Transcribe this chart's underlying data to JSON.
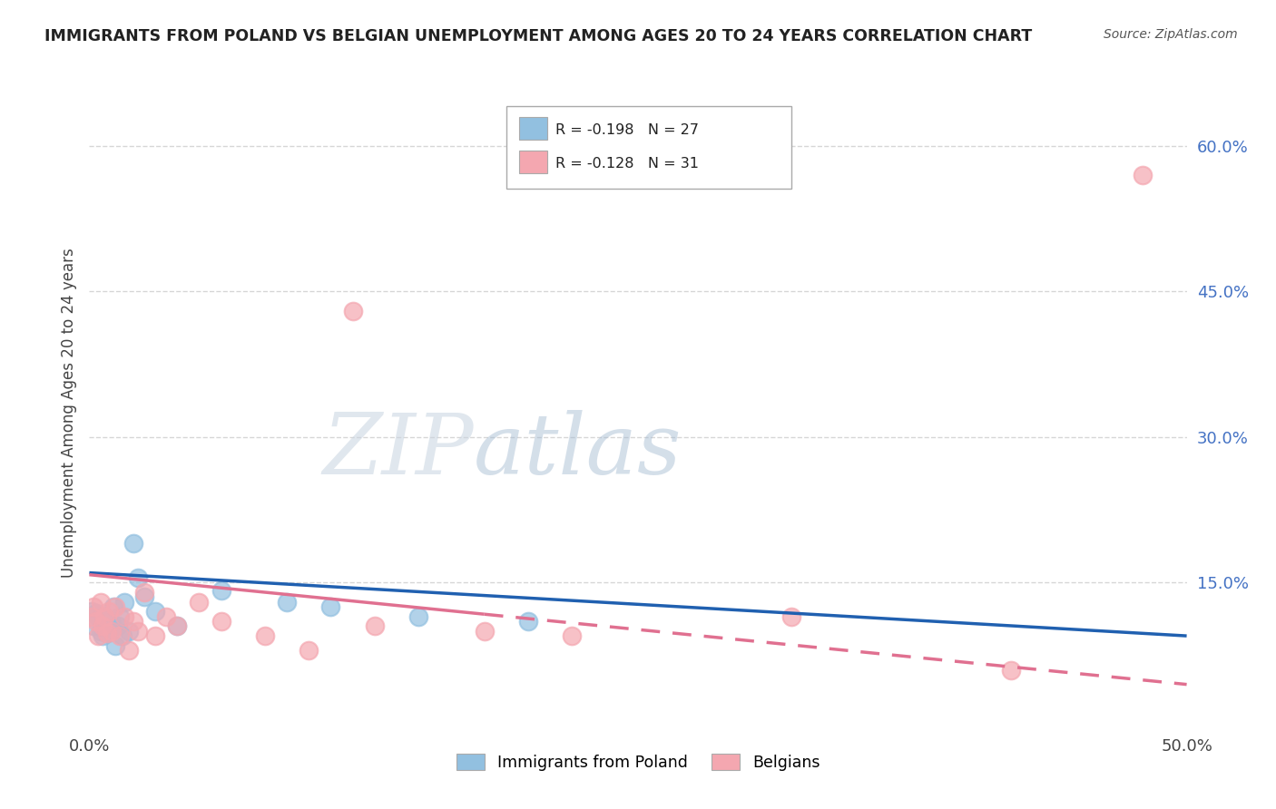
{
  "title": "IMMIGRANTS FROM POLAND VS BELGIAN UNEMPLOYMENT AMONG AGES 20 TO 24 YEARS CORRELATION CHART",
  "source": "Source: ZipAtlas.com",
  "ylabel": "Unemployment Among Ages 20 to 24 years",
  "legend_entry1": "R = -0.198   N = 27",
  "legend_entry2": "R = -0.128   N = 31",
  "legend_label1": "Immigrants from Poland",
  "legend_label2": "Belgians",
  "poland_color": "#92c0e0",
  "belgium_color": "#f4a7b0",
  "poland_trend_color": "#2060b0",
  "belgium_trend_color": "#e07090",
  "watermark_text": "ZIPatlas",
  "poland_scatter_x": [
    0.001,
    0.002,
    0.003,
    0.004,
    0.005,
    0.006,
    0.007,
    0.008,
    0.009,
    0.01,
    0.011,
    0.012,
    0.013,
    0.014,
    0.015,
    0.016,
    0.018,
    0.02,
    0.022,
    0.025,
    0.03,
    0.04,
    0.06,
    0.09,
    0.11,
    0.15,
    0.2
  ],
  "poland_scatter_y": [
    0.12,
    0.105,
    0.118,
    0.115,
    0.1,
    0.095,
    0.115,
    0.098,
    0.11,
    0.108,
    0.125,
    0.085,
    0.105,
    0.115,
    0.095,
    0.13,
    0.1,
    0.19,
    0.155,
    0.135,
    0.12,
    0.105,
    0.142,
    0.13,
    0.125,
    0.115,
    0.11
  ],
  "belgium_scatter_x": [
    0.001,
    0.002,
    0.003,
    0.004,
    0.005,
    0.006,
    0.007,
    0.008,
    0.009,
    0.01,
    0.012,
    0.014,
    0.016,
    0.018,
    0.02,
    0.022,
    0.025,
    0.03,
    0.035,
    0.04,
    0.05,
    0.06,
    0.08,
    0.1,
    0.12,
    0.13,
    0.18,
    0.22,
    0.32,
    0.42,
    0.48
  ],
  "belgium_scatter_y": [
    0.115,
    0.125,
    0.11,
    0.095,
    0.13,
    0.105,
    0.115,
    0.098,
    0.12,
    0.1,
    0.125,
    0.095,
    0.115,
    0.08,
    0.11,
    0.1,
    0.14,
    0.095,
    0.115,
    0.105,
    0.13,
    0.11,
    0.095,
    0.08,
    0.43,
    0.105,
    0.1,
    0.095,
    0.115,
    0.06,
    0.57
  ],
  "xlim": [
    0.0,
    0.5
  ],
  "ylim": [
    0.0,
    0.65
  ],
  "yticks_right": [
    0.15,
    0.3,
    0.45,
    0.6
  ],
  "ytick_labels_right": [
    "15.0%",
    "30.0%",
    "45.0%",
    "60.0%"
  ],
  "background_color": "#ffffff",
  "grid_color": "#cccccc"
}
